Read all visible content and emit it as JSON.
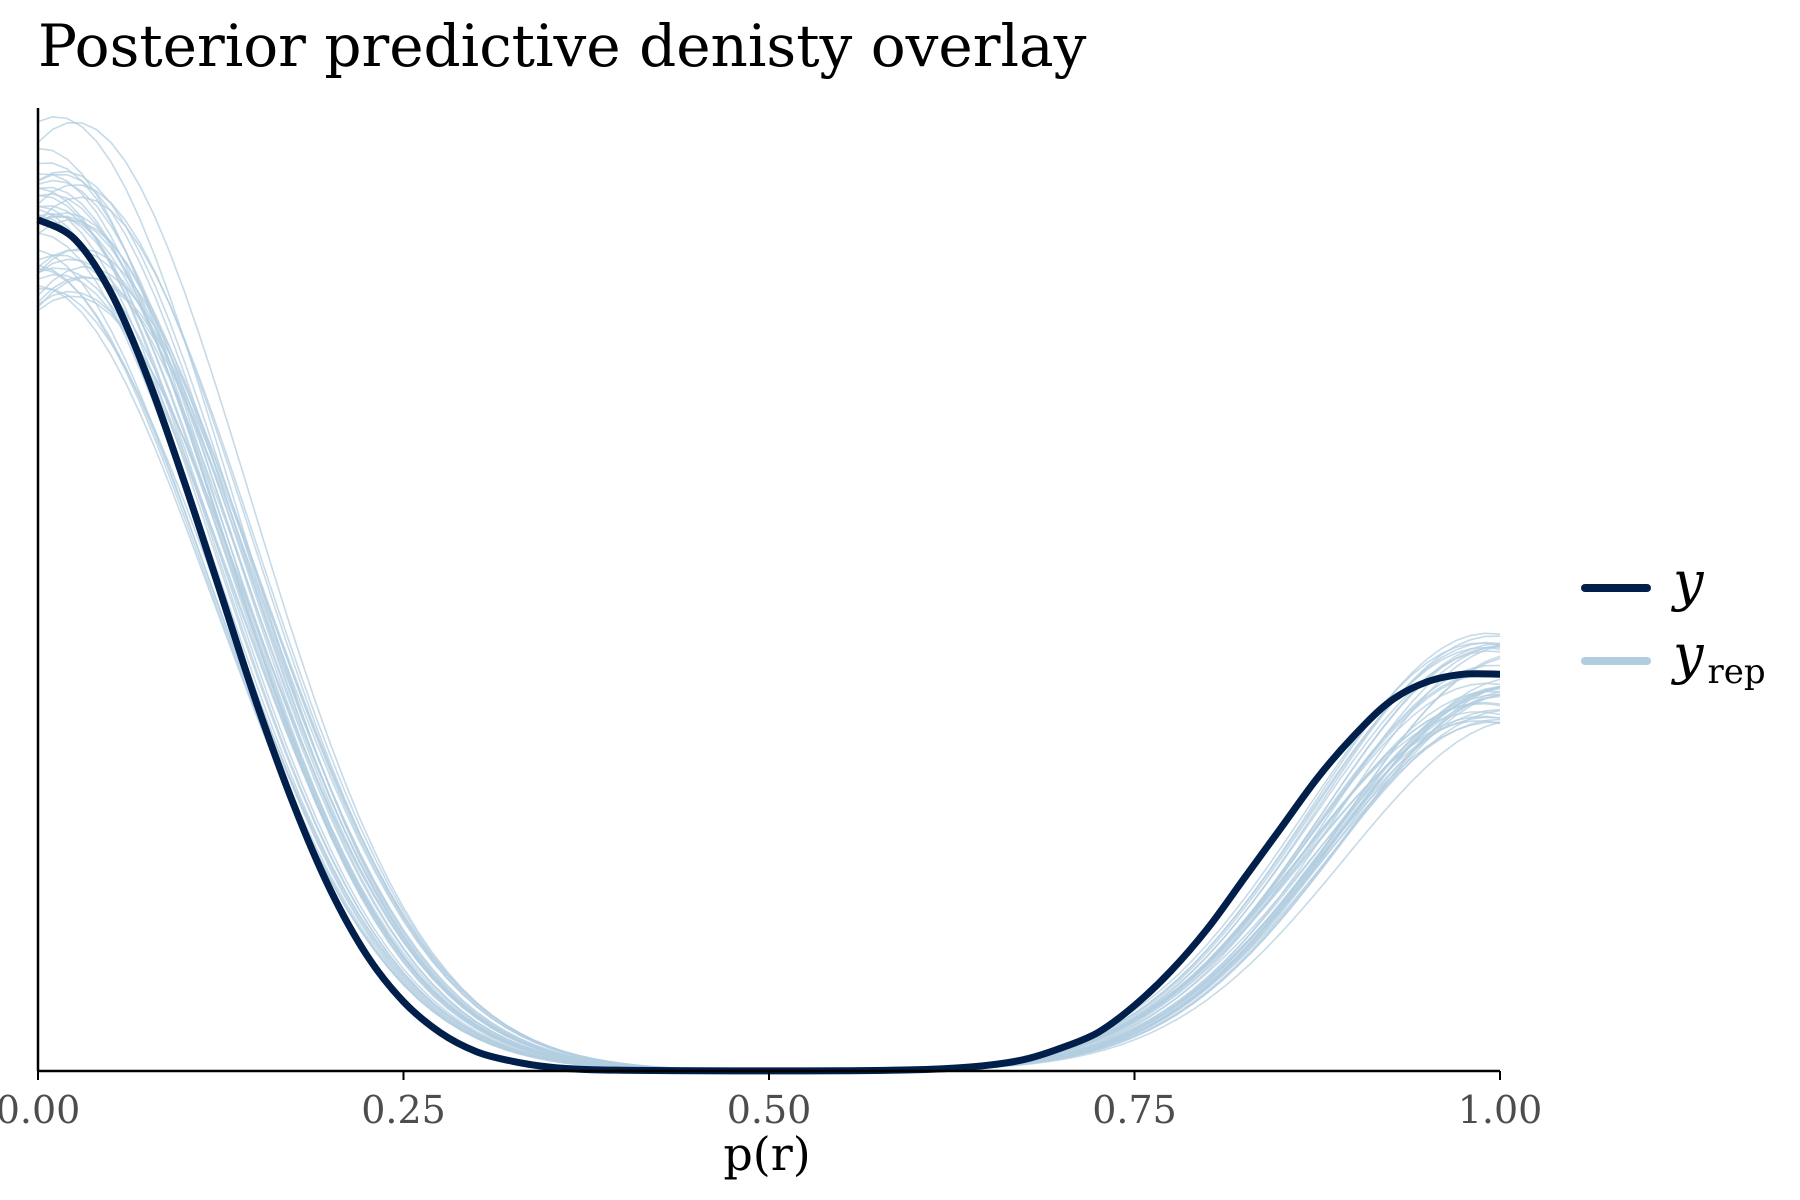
{
  "chart_data": {
    "type": "line",
    "title": "Posterior predictive denisty overlay",
    "xlabel": "p(r)",
    "ylabel": "",
    "xlim": [
      0,
      1
    ],
    "ylim": [
      0,
      2.5
    ],
    "x_ticks": [
      "0.00",
      "0.25",
      "0.50",
      "0.75",
      "1.00"
    ],
    "x_tick_values": [
      0,
      0.25,
      0.5,
      0.75,
      1.0
    ],
    "y_axis_ticks": "none",
    "grid": false,
    "legend_position": "right",
    "legend": [
      {
        "label": "y",
        "subscript": "",
        "color": "#011f4b"
      },
      {
        "label": "y",
        "subscript": "rep",
        "color": "#b3cde0"
      }
    ],
    "series": [
      {
        "name": "y",
        "color": "#011f4b",
        "x": [
          0.0,
          0.025,
          0.05,
          0.075,
          0.1,
          0.125,
          0.15,
          0.175,
          0.2,
          0.225,
          0.25,
          0.275,
          0.3,
          0.325,
          0.35,
          0.375,
          0.4,
          0.45,
          0.5,
          0.55,
          0.6,
          0.625,
          0.65,
          0.675,
          0.7,
          0.725,
          0.75,
          0.775,
          0.8,
          0.825,
          0.85,
          0.875,
          0.9,
          0.925,
          0.95,
          0.975,
          1.0
        ],
        "y": [
          2.21,
          2.16,
          2.02,
          1.8,
          1.53,
          1.24,
          0.95,
          0.69,
          0.47,
          0.3,
          0.18,
          0.1,
          0.05,
          0.025,
          0.01,
          0.004,
          0.002,
          0.0005,
          0.0002,
          0.0005,
          0.003,
          0.007,
          0.015,
          0.03,
          0.06,
          0.1,
          0.17,
          0.26,
          0.37,
          0.5,
          0.63,
          0.76,
          0.87,
          0.96,
          1.01,
          1.03,
          1.03
        ]
      }
    ],
    "replicates": {
      "name": "y_rep",
      "color": "#b3cde0",
      "count": 40,
      "peak_left_range": [
        2.0,
        2.5
      ],
      "peak_right_range": [
        0.9,
        1.14
      ]
    }
  }
}
